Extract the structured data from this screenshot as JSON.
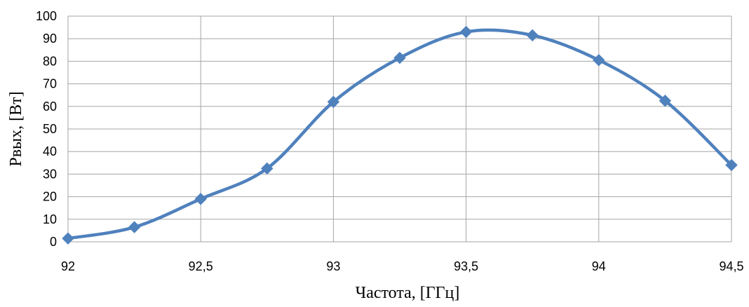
{
  "chart_data": {
    "type": "line",
    "title": "",
    "xlabel": "Частота, [ГГц]",
    "ylabel": "Рвых, [Вт]",
    "x": [
      92,
      92.25,
      92.5,
      92.75,
      93,
      93.25,
      93.5,
      93.75,
      94,
      94.25,
      94.5
    ],
    "x_tick_labels": [
      "92",
      "92,5",
      "93",
      "93,5",
      "94",
      "94,5"
    ],
    "y_tick_labels": [
      "0",
      "10",
      "20",
      "30",
      "40",
      "50",
      "60",
      "70",
      "80",
      "90",
      "100"
    ],
    "xlim": [
      92,
      94.5
    ],
    "ylim": [
      0,
      100
    ],
    "grid": true,
    "legend": "none",
    "series": [
      {
        "values": [
          1.5,
          6.5,
          19,
          32.5,
          62,
          81.5,
          93,
          91.5,
          80.5,
          62.5,
          34
        ],
        "color": "#4f81bd",
        "marker": "diamond",
        "smooth": true
      }
    ]
  }
}
